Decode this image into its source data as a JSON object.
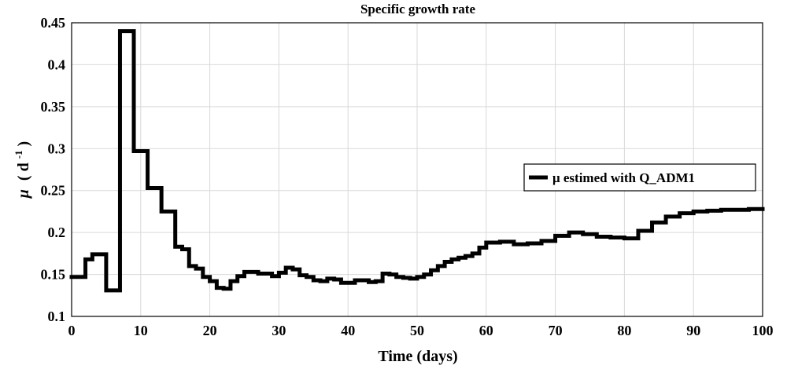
{
  "chart_data": {
    "type": "line",
    "title": "Specific growth rate",
    "xlabel": "Time (days)",
    "ylabel": {
      "symbol": "μ",
      "unit_open": "( d",
      "unit_exp": "-1",
      "unit_close": " )"
    },
    "xlim": [
      0,
      100
    ],
    "ylim": [
      0.1,
      0.45
    ],
    "xticks": [
      0,
      10,
      20,
      30,
      40,
      50,
      60,
      70,
      80,
      90,
      100
    ],
    "xtick_labels": [
      "0",
      "10",
      "20",
      "30",
      "40",
      "50",
      "60",
      "70",
      "80",
      "90",
      "100"
    ],
    "yticks": [
      0.1,
      0.15,
      0.2,
      0.25,
      0.3,
      0.35,
      0.4,
      0.45
    ],
    "ytick_labels": [
      "0.1",
      "0.15",
      "0.2",
      "0.25",
      "0.3",
      "0.35",
      "0.4",
      "0.45"
    ],
    "grid": true,
    "legend_position": "right",
    "line_color": "#000000",
    "series": [
      {
        "name": "μ estimed with Q_ADM1",
        "step": true,
        "x": [
          0,
          2,
          3,
          4,
          5,
          6,
          7,
          8,
          9,
          10,
          11,
          12,
          13,
          14,
          15,
          16,
          17,
          18,
          19,
          20,
          21,
          22,
          23,
          24,
          25,
          26,
          27,
          28,
          29,
          30,
          31,
          32,
          33,
          34,
          35,
          36,
          37,
          38,
          39,
          40,
          41,
          42,
          43,
          44,
          45,
          46,
          47,
          48,
          49,
          50,
          51,
          52,
          53,
          54,
          55,
          56,
          57,
          58,
          59,
          60,
          62,
          64,
          66,
          68,
          70,
          72,
          74,
          76,
          78,
          80,
          82,
          84,
          86,
          88,
          90,
          92,
          94,
          96,
          98,
          100
        ],
        "y": [
          0.147,
          0.168,
          0.174,
          0.174,
          0.131,
          0.131,
          0.44,
          0.44,
          0.297,
          0.297,
          0.253,
          0.253,
          0.225,
          0.225,
          0.183,
          0.18,
          0.16,
          0.157,
          0.147,
          0.142,
          0.134,
          0.133,
          0.142,
          0.148,
          0.153,
          0.153,
          0.151,
          0.151,
          0.148,
          0.152,
          0.158,
          0.156,
          0.149,
          0.147,
          0.143,
          0.142,
          0.145,
          0.144,
          0.14,
          0.14,
          0.143,
          0.143,
          0.141,
          0.142,
          0.151,
          0.15,
          0.147,
          0.146,
          0.145,
          0.147,
          0.15,
          0.155,
          0.16,
          0.165,
          0.168,
          0.17,
          0.172,
          0.175,
          0.182,
          0.188,
          0.189,
          0.186,
          0.187,
          0.19,
          0.196,
          0.2,
          0.198,
          0.195,
          0.194,
          0.193,
          0.202,
          0.212,
          0.219,
          0.223,
          0.225,
          0.226,
          0.227,
          0.227,
          0.228,
          0.228
        ]
      }
    ]
  }
}
